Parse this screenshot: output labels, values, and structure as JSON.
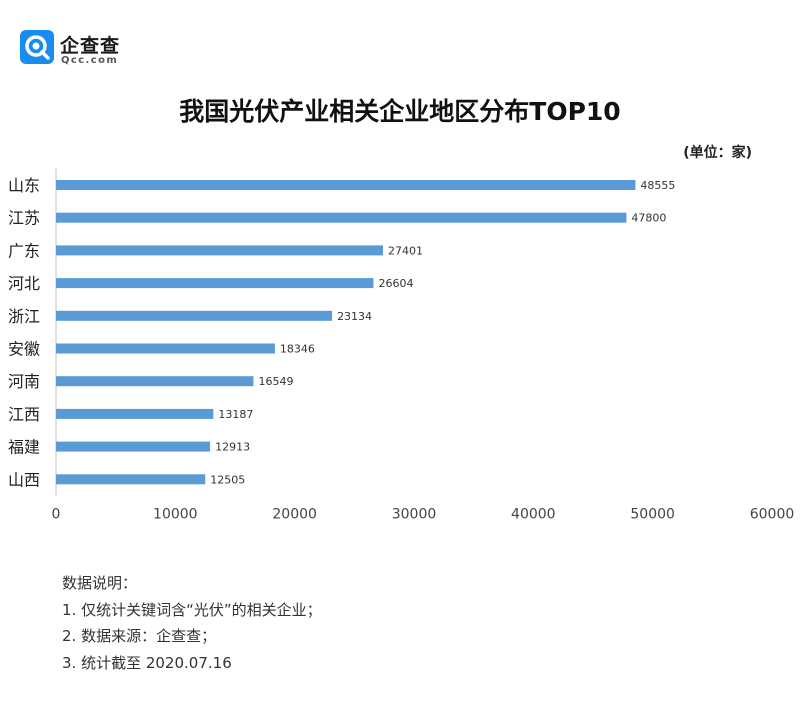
{
  "brand": {
    "name": "企查查",
    "domain": "Qcc.com",
    "color": "#1a8cf0"
  },
  "unit_label": "(单位：家)",
  "notes": {
    "heading": "数据说明：",
    "items": [
      "1. 仅统计关键词含“光伏”的相关企业；",
      "2. 数据来源：企查查；",
      "3. 统计截至 2020.07.16"
    ]
  },
  "chart_data": {
    "type": "bar",
    "orientation": "horizontal",
    "title": "我国光伏产业相关企业地区分布TOP10",
    "categories": [
      "山东",
      "江苏",
      "广东",
      "河北",
      "浙江",
      "安徽",
      "河南",
      "江西",
      "福建",
      "山西"
    ],
    "values": [
      48555,
      47800,
      27401,
      26604,
      23134,
      18346,
      16549,
      13187,
      12913,
      12505
    ],
    "xlim": [
      0,
      60000
    ],
    "xticks": [
      0,
      10000,
      20000,
      30000,
      40000,
      50000,
      60000
    ],
    "grid": false,
    "bar_color": "#5b9bd5"
  }
}
